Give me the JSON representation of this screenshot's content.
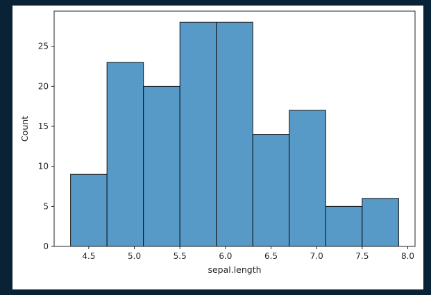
{
  "chart_data": {
    "type": "bar",
    "title": "",
    "xlabel": "sepal.length",
    "ylabel": "Count",
    "bin_edges": [
      4.3,
      4.7,
      5.1,
      5.5,
      5.9,
      6.3,
      6.7,
      7.1,
      7.5,
      7.9
    ],
    "values": [
      9,
      23,
      20,
      28,
      28,
      14,
      17,
      5,
      6
    ],
    "xlim": [
      4.12,
      8.08
    ],
    "ylim": [
      0,
      29.4
    ],
    "xticks": [
      4.5,
      5.0,
      5.5,
      6.0,
      6.5,
      7.0,
      7.5,
      8.0
    ],
    "xtick_labels": [
      "4.5",
      "5.0",
      "5.5",
      "6.0",
      "6.5",
      "7.0",
      "7.5",
      "8.0"
    ],
    "yticks": [
      0,
      5,
      10,
      15,
      20,
      25
    ],
    "ytick_labels": [
      "0",
      "5",
      "10",
      "15",
      "20",
      "25"
    ],
    "grid": false,
    "bar_color": "#5799c7",
    "edge_color": "#111111"
  }
}
